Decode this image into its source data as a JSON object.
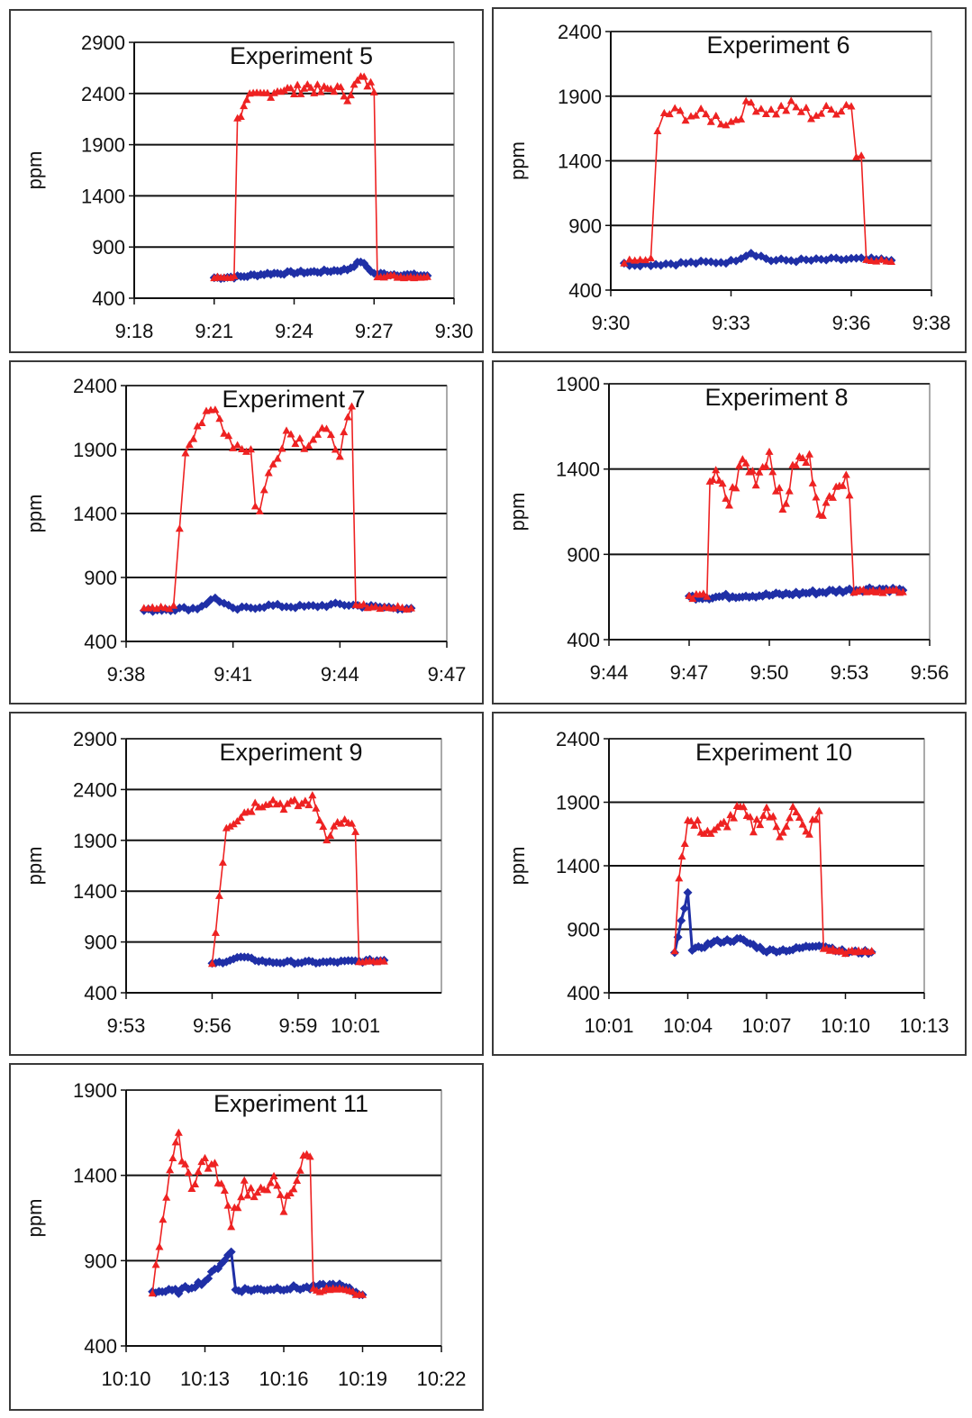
{
  "chart_data": [
    {
      "type": "line",
      "title": "Experiment 5",
      "ylabel": "ppm",
      "xlabel": "",
      "ylim": [
        400,
        2900
      ],
      "yticks": [
        "400",
        "900",
        "1400",
        "1900",
        "2400",
        "2900"
      ],
      "xlim": [
        "9:18",
        "9:30"
      ],
      "xticks": [
        "9:18",
        "9:21",
        "9:24",
        "9:27",
        "9:30"
      ],
      "grid": "horizontal",
      "series": [
        {
          "color": "#1f2fa6",
          "marker": "diamond",
          "x": [
            "9:21",
            "9:22",
            "9:23",
            "9:24",
            "9:25",
            "9:26",
            "9:26:30",
            "9:27",
            "9:28",
            "9:29"
          ],
          "values": [
            600,
            610,
            640,
            650,
            660,
            680,
            760,
            640,
            630,
            620
          ]
        },
        {
          "color": "#ee2222",
          "marker": "triangle",
          "x": [
            "9:21",
            "9:21:45",
            "9:22",
            "9:22:20",
            "9:23",
            "9:23:30",
            "9:24",
            "9:24:30",
            "9:25",
            "9:25:30",
            "9:26",
            "9:26:30",
            "9:27",
            "9:27:15",
            "9:28",
            "9:29"
          ],
          "values": [
            600,
            610,
            2200,
            2350,
            2400,
            2450,
            2420,
            2480,
            2420,
            2460,
            2380,
            2550,
            2450,
            620,
            610,
            610
          ]
        }
      ]
    },
    {
      "type": "line",
      "title": "Experiment 6",
      "ylabel": "ppm",
      "xlabel": "",
      "ylim": [
        400,
        2400
      ],
      "yticks": [
        "400",
        "900",
        "1400",
        "1900",
        "2400"
      ],
      "xlim": [
        "9:30",
        "9:38"
      ],
      "xticks": [
        "9:30",
        "9:33",
        "9:36",
        "9:38"
      ],
      "grid": "horizontal",
      "series": [
        {
          "color": "#1f2fa6",
          "marker": "diamond",
          "x": [
            "9:30:20",
            "9:31",
            "9:32",
            "9:33",
            "9:33:30",
            "9:34",
            "9:35",
            "9:36",
            "9:37"
          ],
          "values": [
            600,
            600,
            610,
            620,
            690,
            630,
            630,
            640,
            630
          ]
        },
        {
          "color": "#ee2222",
          "marker": "triangle",
          "x": [
            "9:30:20",
            "9:31",
            "9:31:10",
            "9:31:20",
            "9:32",
            "9:32:30",
            "9:33",
            "9:33:30",
            "9:34",
            "9:34:30",
            "9:35",
            "9:35:30",
            "9:36",
            "9:36:15",
            "9:36:30",
            "9:37"
          ],
          "values": [
            620,
            640,
            1600,
            1770,
            1760,
            1740,
            1700,
            1850,
            1780,
            1820,
            1760,
            1790,
            1850,
            1440,
            640,
            620
          ]
        }
      ]
    },
    {
      "type": "line",
      "title": "Experiment 7",
      "ylabel": "ppm",
      "xlabel": "",
      "ylim": [
        400,
        2400
      ],
      "yticks": [
        "400",
        "900",
        "1400",
        "1900",
        "2400"
      ],
      "xlim": [
        "9:38",
        "9:47"
      ],
      "xticks": [
        "9:38",
        "9:41",
        "9:44",
        "9:47"
      ],
      "grid": "horizontal",
      "series": [
        {
          "color": "#1f2fa6",
          "marker": "diamond",
          "x": [
            "9:38:30",
            "9:39",
            "9:40",
            "9:40:30",
            "9:41",
            "9:42",
            "9:43",
            "9:44",
            "9:45",
            "9:46"
          ],
          "values": [
            640,
            650,
            660,
            740,
            650,
            680,
            670,
            690,
            670,
            660
          ]
        },
        {
          "color": "#ee2222",
          "marker": "triangle",
          "x": [
            "9:38:30",
            "9:39:20",
            "9:39:30",
            "9:39:40",
            "9:40",
            "9:40:30",
            "9:41",
            "9:41:30",
            "9:41:45",
            "9:42",
            "9:42:30",
            "9:43",
            "9:43:30",
            "9:44",
            "9:44:20",
            "9:44:40",
            "9:45",
            "9:46"
          ],
          "values": [
            650,
            670,
            1300,
            1900,
            2100,
            2200,
            1950,
            1900,
            1450,
            1700,
            2050,
            1950,
            2050,
            1900,
            2200,
            680,
            670,
            660
          ]
        }
      ]
    },
    {
      "type": "line",
      "title": "Experiment 8",
      "ylabel": "ppm",
      "xlabel": "",
      "ylim": [
        400,
        1900
      ],
      "yticks": [
        "400",
        "900",
        "1400",
        "1900"
      ],
      "xlim": [
        "9:44",
        "9:56"
      ],
      "xticks": [
        "9:44",
        "9:47",
        "9:50",
        "9:53",
        "9:56"
      ],
      "grid": "horizontal",
      "series": [
        {
          "color": "#1f2fa6",
          "marker": "diamond",
          "x": [
            "9:47",
            "9:48",
            "9:49",
            "9:50",
            "9:51",
            "9:52",
            "9:53",
            "9:54",
            "9:55"
          ],
          "values": [
            650,
            650,
            660,
            660,
            670,
            680,
            690,
            700,
            690
          ]
        },
        {
          "color": "#ee2222",
          "marker": "triangle",
          "x": [
            "9:47",
            "9:47:40",
            "9:48",
            "9:48:30",
            "9:49",
            "9:49:30",
            "9:50",
            "9:50:30",
            "9:51",
            "9:51:30",
            "9:52",
            "9:52:30",
            "9:53",
            "9:53:10",
            "9:54",
            "9:55"
          ],
          "values": [
            650,
            660,
            1350,
            1200,
            1450,
            1350,
            1500,
            1150,
            1450,
            1450,
            1100,
            1350,
            1300,
            690,
            690,
            680
          ]
        }
      ]
    },
    {
      "type": "line",
      "title": "Experiment 9",
      "ylabel": "ppm",
      "xlabel": "",
      "ylim": [
        400,
        2900
      ],
      "yticks": [
        "400",
        "900",
        "1400",
        "1900",
        "2400",
        "2900"
      ],
      "xlim": [
        "9:53",
        "10:04"
      ],
      "xticks": [
        "9:53",
        "9:56",
        "9:59",
        "10:01"
      ],
      "grid": "horizontal",
      "series": [
        {
          "color": "#1f2fa6",
          "marker": "diamond",
          "x": [
            "9:56",
            "9:57",
            "9:58",
            "9:59",
            "10:00",
            "10:01",
            "10:02"
          ],
          "values": [
            680,
            750,
            700,
            700,
            700,
            710,
            720
          ]
        },
        {
          "color": "#ee2222",
          "marker": "triangle",
          "x": [
            "9:56",
            "9:56:30",
            "9:57",
            "9:57:30",
            "9:58",
            "9:58:30",
            "9:59",
            "9:59:30",
            "10:00",
            "10:00:30",
            "10:01",
            "10:01:15",
            "10:02"
          ],
          "values": [
            690,
            2050,
            2150,
            2250,
            2300,
            2250,
            2250,
            2300,
            1950,
            2100,
            2000,
            700,
            710
          ]
        }
      ]
    },
    {
      "type": "line",
      "title": "Experiment 10",
      "ylabel": "ppm",
      "xlabel": "",
      "ylim": [
        400,
        2400
      ],
      "yticks": [
        "400",
        "900",
        "1400",
        "1900",
        "2400"
      ],
      "xlim": [
        "10:01",
        "10:13"
      ],
      "xticks": [
        "10:01",
        "10:04",
        "10:07",
        "10:10",
        "10:13"
      ],
      "grid": "horizontal",
      "series": [
        {
          "color": "#1f2fa6",
          "marker": "diamond",
          "x": [
            "10:03:30",
            "10:04",
            "10:04:10",
            "10:05",
            "10:06",
            "10:07",
            "10:08",
            "10:09",
            "10:10",
            "10:11"
          ],
          "values": [
            710,
            1200,
            730,
            800,
            820,
            730,
            740,
            780,
            720,
            720
          ]
        },
        {
          "color": "#ee2222",
          "marker": "triangle",
          "x": [
            "10:03:30",
            "10:03:40",
            "10:04",
            "10:04:30",
            "10:05",
            "10:05:30",
            "10:06",
            "10:06:30",
            "10:07",
            "10:07:30",
            "10:08",
            "10:08:30",
            "10:09",
            "10:09:10",
            "10:10",
            "10:11"
          ],
          "values": [
            720,
            1350,
            1750,
            1700,
            1650,
            1750,
            1850,
            1700,
            1850,
            1650,
            1850,
            1650,
            1800,
            750,
            720,
            730
          ]
        }
      ]
    },
    {
      "type": "line",
      "title": "Experiment 11",
      "ylabel": "ppm",
      "xlabel": "",
      "ylim": [
        400,
        1900
      ],
      "yticks": [
        "400",
        "900",
        "1400",
        "1900"
      ],
      "xlim": [
        "10:10",
        "10:22"
      ],
      "xticks": [
        "10:10",
        "10:13",
        "10:16",
        "10:19",
        "10:22"
      ],
      "grid": "horizontal",
      "series": [
        {
          "color": "#1f2fa6",
          "marker": "diamond",
          "x": [
            "10:11",
            "10:12",
            "10:13",
            "10:14",
            "10:14:10",
            "10:15",
            "10:16",
            "10:17",
            "10:18",
            "10:19"
          ],
          "values": [
            720,
            720,
            780,
            950,
            730,
            730,
            740,
            740,
            760,
            700
          ]
        },
        {
          "color": "#ee2222",
          "marker": "triangle",
          "x": [
            "10:11",
            "10:11:40",
            "10:12",
            "10:12:30",
            "10:13",
            "10:13:30",
            "10:14",
            "10:14:30",
            "10:15",
            "10:15:30",
            "10:16",
            "10:16:30",
            "10:17",
            "10:17:15",
            "10:18",
            "10:19"
          ],
          "values": [
            720,
            1450,
            1600,
            1350,
            1500,
            1400,
            1150,
            1350,
            1250,
            1400,
            1200,
            1400,
            1550,
            730,
            730,
            700
          ]
        }
      ]
    }
  ]
}
